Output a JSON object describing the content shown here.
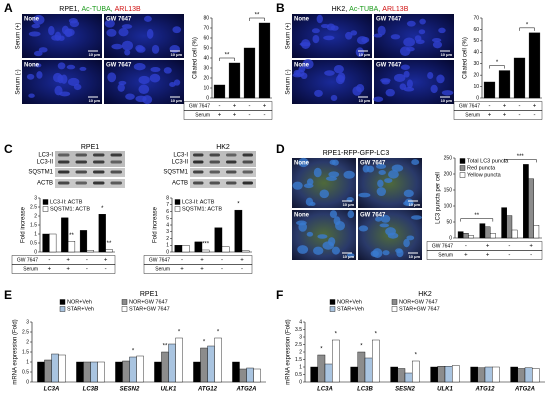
{
  "panels": {
    "A": {
      "label": "A",
      "title": [
        "RPE1,",
        "Ac-TUBA,",
        "ARL13B"
      ],
      "rows": [
        "Serum (+)",
        "Serum (-)"
      ],
      "images": [
        "None",
        "GW 7647",
        "None",
        "GW 7647"
      ],
      "scale": "10 µm"
    },
    "B": {
      "label": "B",
      "title": [
        "HK2,",
        "Ac-TUBA,",
        "ARL13B"
      ],
      "rows": [
        "Serum (+)",
        "Serum (-)"
      ],
      "images": [
        "None",
        "GW 7647",
        "None",
        "GW 7647"
      ],
      "scale": "10 µm"
    },
    "C": {
      "label": "C",
      "blots": [
        {
          "title": "RPE1",
          "bands": [
            "LC3-I",
            "LC3-II",
            "SQSTM1",
            "ACTB"
          ]
        },
        {
          "title": "HK2",
          "bands": [
            "LC3-I",
            "LC3-II",
            "SQSTM1",
            "ACTB"
          ]
        }
      ]
    },
    "D": {
      "label": "D",
      "title": "RPE1-RFP-GFP-LC3",
      "images": [
        "None",
        "GW 7647",
        "None",
        "GW 7647"
      ],
      "scale": "10 µm"
    },
    "E": {
      "label": "E"
    },
    "F": {
      "label": "F"
    }
  },
  "chart_data": [
    {
      "type": "bar",
      "ylabel": "Ciliated cell (%)",
      "categories": [
        null,
        null,
        null,
        null
      ],
      "series": [
        {
          "color": "#000000",
          "values": [
            13,
            35,
            50,
            75
          ]
        }
      ],
      "ylim": [
        0,
        80
      ],
      "yticks": [
        0,
        10,
        20,
        30,
        40,
        50,
        60,
        70,
        80
      ],
      "annotations": [
        {
          "text": "**",
          "bars": [
            0,
            1
          ]
        },
        {
          "text": "**",
          "bars": [
            2,
            3
          ]
        }
      ],
      "table": [
        {
          "label": "GW 7647",
          "cells": [
            "-",
            "+",
            "-",
            "+"
          ]
        },
        {
          "label": "Serum",
          "cells": [
            "+",
            "+",
            "-",
            "-"
          ]
        }
      ]
    },
    {
      "type": "bar",
      "ylabel": "Ciliated cell (%)",
      "categories": [
        null,
        null,
        null,
        null
      ],
      "series": [
        {
          "color": "#000000",
          "values": [
            14,
            24,
            35,
            57
          ]
        }
      ],
      "ylim": [
        0,
        70
      ],
      "yticks": [
        0,
        10,
        20,
        30,
        40,
        50,
        60,
        70
      ],
      "annotations": [
        {
          "text": "*",
          "bars": [
            0,
            1
          ]
        },
        {
          "text": "*",
          "bars": [
            2,
            3
          ]
        }
      ],
      "table": [
        {
          "label": "GW 7647",
          "cells": [
            "-",
            "+",
            "-",
            "+"
          ]
        },
        {
          "label": "Serum",
          "cells": [
            "+",
            "+",
            "-",
            "-"
          ]
        }
      ]
    },
    {
      "type": "bar",
      "ylabel": "Fold increase",
      "categories": [
        null,
        null,
        null,
        null
      ],
      "series": [
        {
          "name": "LC3-II: ACTB",
          "color": "#000000",
          "values": [
            1,
            1.9,
            1.2,
            2.1
          ]
        },
        {
          "name": "SQSTM1: ACTB",
          "color": "#ffffff",
          "values": [
            1,
            0.6,
            0.1,
            0.15
          ]
        }
      ],
      "ylim": [
        0,
        3
      ],
      "yticks": [
        0,
        0.5,
        1,
        1.5,
        2,
        2.5,
        3
      ],
      "annotations": [
        {
          "text": "**",
          "at": [
            1,
            1
          ]
        },
        {
          "text": "*",
          "at": [
            3,
            0
          ]
        },
        {
          "text": "**",
          "at": [
            3,
            1
          ]
        }
      ],
      "table": [
        {
          "label": "GW 7647",
          "cells": [
            "-",
            "+",
            "-",
            "+"
          ]
        },
        {
          "label": "Serum",
          "cells": [
            "+",
            "+",
            "-",
            "-"
          ]
        }
      ]
    },
    {
      "type": "bar",
      "ylabel": "Fold increase",
      "categories": [
        null,
        null,
        null,
        null
      ],
      "series": [
        {
          "name": "LC3-II: ACTB",
          "color": "#000000",
          "values": [
            1,
            1.5,
            3.6,
            6.2
          ]
        },
        {
          "name": "SQSTM1: ACTB",
          "color": "#ffffff",
          "values": [
            1,
            0.3,
            0.8,
            0.2
          ]
        }
      ],
      "ylim": [
        0,
        8
      ],
      "yticks": [
        0,
        1,
        2,
        3,
        4,
        5,
        6,
        7,
        8
      ],
      "annotations": [
        {
          "text": "***",
          "at": [
            1,
            1
          ]
        },
        {
          "text": "*",
          "at": [
            3,
            0
          ]
        }
      ],
      "table": [
        {
          "label": "GW 7647",
          "cells": [
            "-",
            "+",
            "-",
            "+"
          ]
        },
        {
          "label": "Serum",
          "cells": [
            "+",
            "+",
            "-",
            "-"
          ]
        }
      ]
    },
    {
      "type": "bar",
      "ylabel": "LC3 puncta per cell",
      "categories": [
        null,
        null,
        null,
        null
      ],
      "series": [
        {
          "name": "Total LC3 puncta",
          "color": "#000000",
          "values": [
            20,
            45,
            95,
            230
          ]
        },
        {
          "name": "Red puncta",
          "color": "#8c8c8c",
          "values": [
            15,
            35,
            70,
            185
          ]
        },
        {
          "name": "Yellow puncta",
          "color": "#ffffff",
          "values": [
            8,
            15,
            25,
            40
          ]
        }
      ],
      "ylim": [
        0,
        250
      ],
      "yticks": [
        0,
        50,
        100,
        150,
        200,
        250
      ],
      "annotations": [
        {
          "text": "**",
          "bars": [
            0,
            1
          ]
        },
        {
          "text": "***",
          "bars": [
            2,
            3
          ]
        }
      ],
      "table": [
        {
          "label": "GW 7647",
          "cells": [
            "-",
            "+",
            "-",
            "+"
          ]
        },
        {
          "label": "Serum",
          "cells": [
            "+",
            "+",
            "-",
            "-"
          ]
        }
      ]
    },
    {
      "type": "bar",
      "title": "RPE1",
      "ylabel": "mRNA expression (Fold)",
      "categories": [
        "LC3A",
        "LC3B",
        "SESN2",
        "ULK1",
        "ATG12",
        "ATG2A"
      ],
      "series": [
        {
          "name": "NOR+Veh",
          "color": "#000000",
          "values": [
            1,
            1,
            1,
            1,
            1,
            1
          ]
        },
        {
          "name": "NOR+GW 7647",
          "color": "#8c8c8c",
          "values": [
            1.1,
            1.0,
            1.05,
            1.5,
            1.7,
            0.65
          ]
        },
        {
          "name": "STAR+Veh",
          "color": "#a9c4e0",
          "values": [
            1.4,
            1.0,
            1.25,
            1.9,
            1.8,
            0.7
          ]
        },
        {
          "name": "STAR+GW 7647",
          "color": "#ffffff",
          "values": [
            1.35,
            1.0,
            1.3,
            2.2,
            2.2,
            0.65
          ]
        }
      ],
      "ylim": [
        0,
        3
      ],
      "yticks": [
        0,
        0.5,
        1,
        1.5,
        2,
        2.5,
        3
      ],
      "annotations": [
        {
          "text": "*",
          "at": [
            2,
            2
          ]
        },
        {
          "text": "**",
          "at": [
            3,
            1
          ]
        },
        {
          "text": "*",
          "at": [
            3,
            3
          ]
        },
        {
          "text": "*",
          "at": [
            4,
            1
          ]
        },
        {
          "text": "*",
          "at": [
            4,
            3
          ]
        }
      ]
    },
    {
      "type": "bar",
      "title": "HK2",
      "ylabel": "mRNA expression (Fold)",
      "categories": [
        "LC3A",
        "LC3B",
        "SESN2",
        "ULK1",
        "ATG12",
        "ATG2A"
      ],
      "series": [
        {
          "name": "NOR+Veh",
          "color": "#000000",
          "values": [
            1,
            1,
            1,
            1,
            1,
            1
          ]
        },
        {
          "name": "NOR+GW 7647",
          "color": "#8c8c8c",
          "values": [
            1.8,
            2.0,
            0.9,
            1.05,
            0.95,
            0.9
          ]
        },
        {
          "name": "STAR+Veh",
          "color": "#a9c4e0",
          "values": [
            1.2,
            1.6,
            0.6,
            1.05,
            1.0,
            0.95
          ]
        },
        {
          "name": "STAR+GW 7647",
          "color": "#ffffff",
          "values": [
            2.8,
            2.8,
            1.4,
            1.1,
            1.0,
            0.9
          ]
        }
      ],
      "ylim": [
        0,
        4
      ],
      "yticks": [
        0,
        0.5,
        1,
        1.5,
        2,
        2.5,
        3,
        3.5,
        4
      ],
      "annotations": [
        {
          "text": "*",
          "at": [
            0,
            1
          ]
        },
        {
          "text": "*",
          "at": [
            0,
            3
          ]
        },
        {
          "text": "*",
          "at": [
            1,
            1
          ]
        },
        {
          "text": "*",
          "at": [
            1,
            3
          ]
        },
        {
          "text": "*",
          "at": [
            2,
            3
          ]
        }
      ]
    }
  ]
}
